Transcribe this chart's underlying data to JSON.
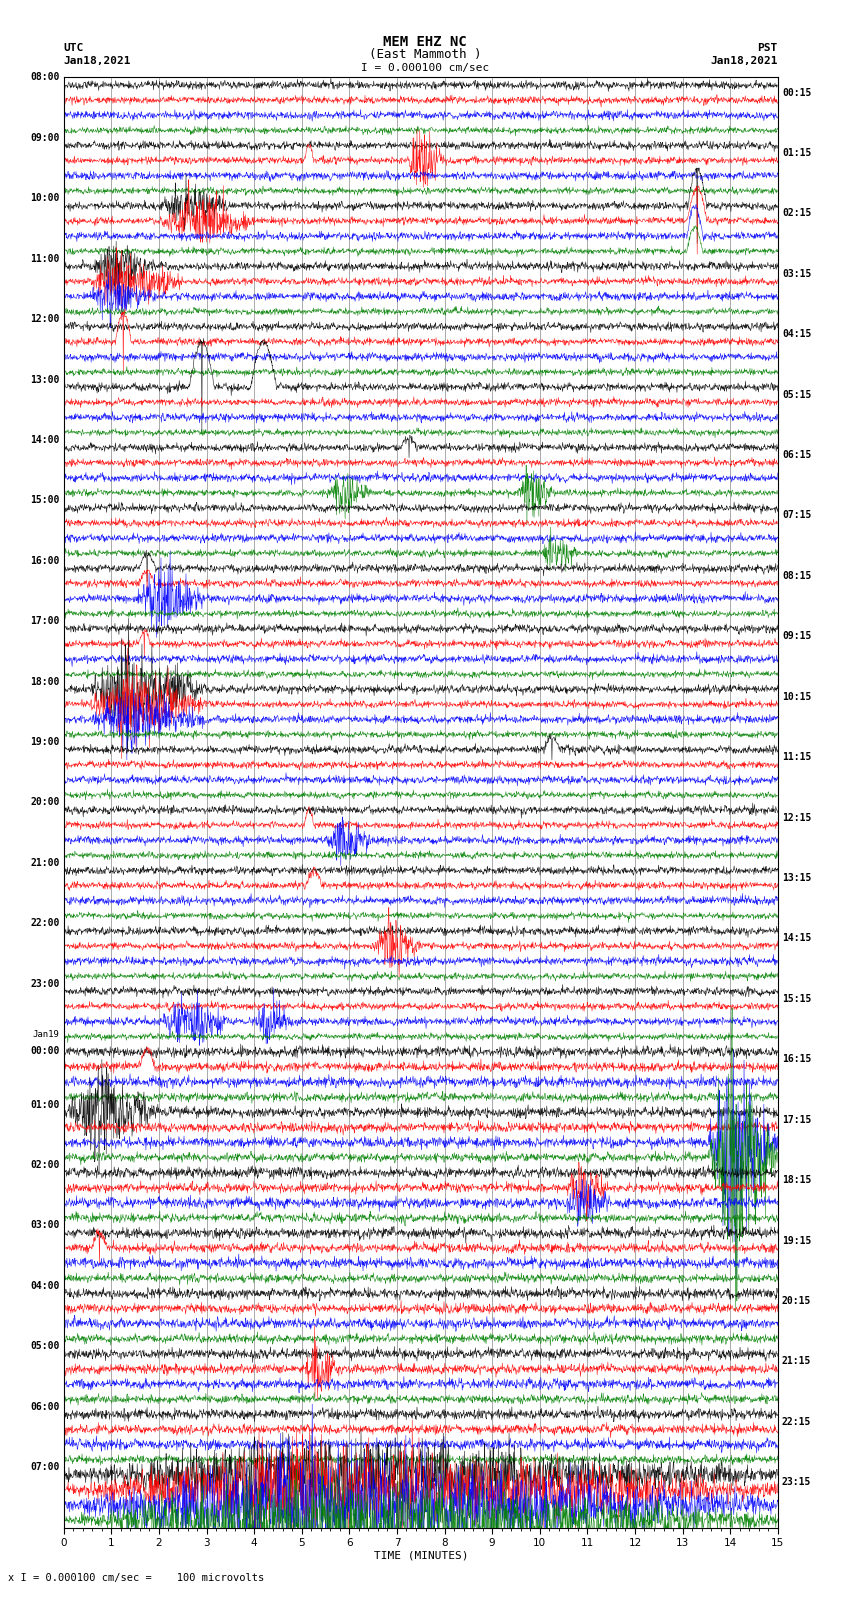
{
  "title_line1": "MEM EHZ NC",
  "title_line2": "(East Mammoth )",
  "scale_text": "I = 0.000100 cm/sec",
  "bottom_note": "x I = 0.000100 cm/sec =    100 microvolts",
  "utc_label": "UTC",
  "pst_label": "PST",
  "date_left": "Jan18,2021",
  "date_right": "Jan18,2021",
  "xlabel": "TIME (MINUTES)",
  "left_times_utc": [
    "08:00",
    "09:00",
    "10:00",
    "11:00",
    "12:00",
    "13:00",
    "14:00",
    "15:00",
    "16:00",
    "17:00",
    "18:00",
    "19:00",
    "20:00",
    "21:00",
    "22:00",
    "23:00",
    "Jan19\n00:00",
    "01:00",
    "02:00",
    "03:00",
    "04:00",
    "05:00",
    "06:00",
    "07:00"
  ],
  "right_times_pst": [
    "00:15",
    "01:15",
    "02:15",
    "03:15",
    "04:15",
    "05:15",
    "06:15",
    "07:15",
    "08:15",
    "09:15",
    "10:15",
    "11:15",
    "12:15",
    "13:15",
    "14:15",
    "15:15",
    "16:15",
    "17:15",
    "18:15",
    "19:15",
    "20:15",
    "21:15",
    "22:15",
    "23:15"
  ],
  "n_traces_per_hour": 4,
  "trace_colors": [
    "black",
    "red",
    "blue",
    "green"
  ],
  "total_minutes": 15,
  "n_points": 1800,
  "background_color": "white",
  "grid_color": "#888888",
  "noise_base": 0.018,
  "scale_factor": 5.5
}
